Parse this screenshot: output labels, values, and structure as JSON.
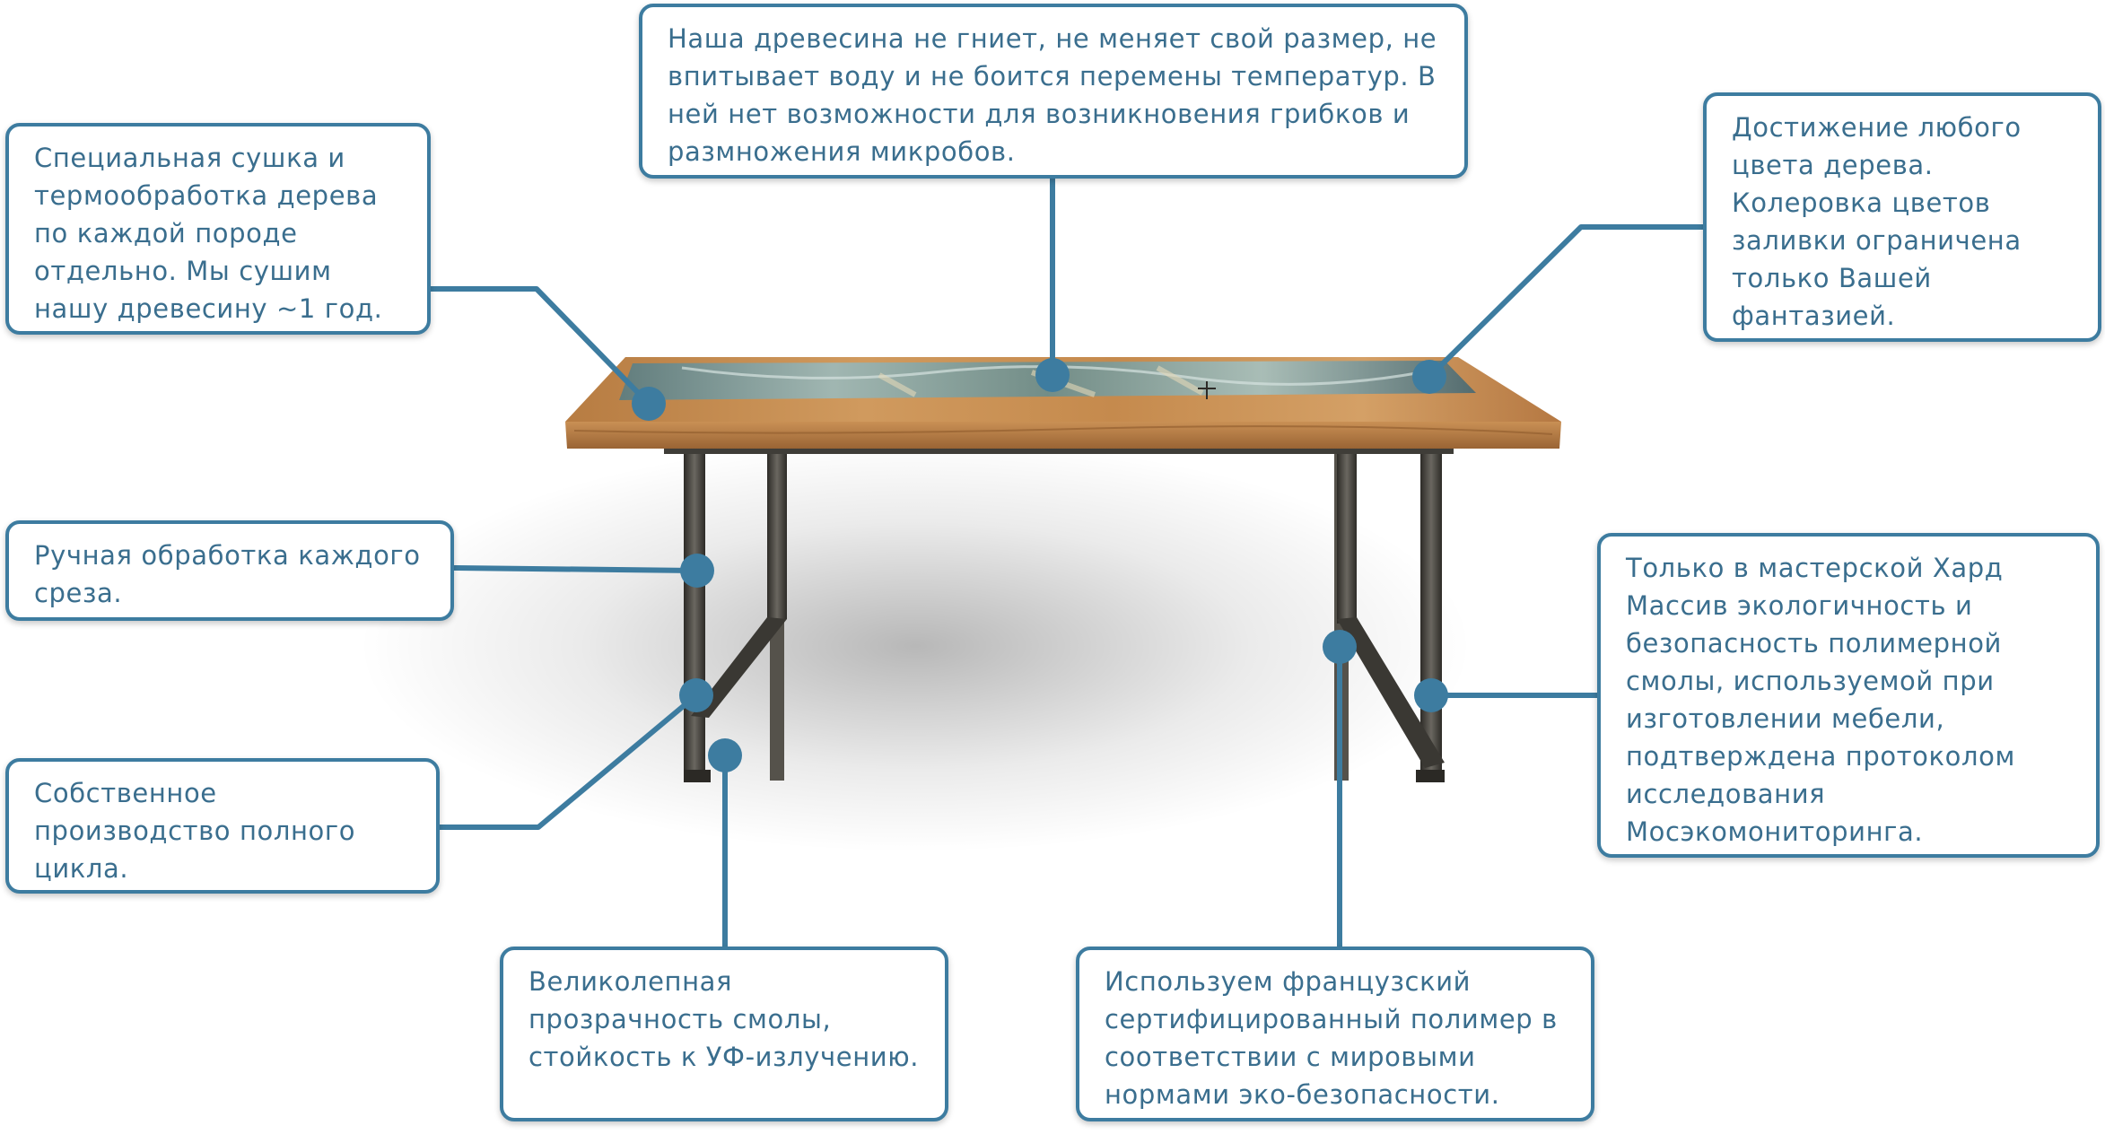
{
  "colors": {
    "accent": "#3d7ca0",
    "text": "#3a6e8e",
    "wood": "#c38a4e",
    "resin": "#7fa3a8",
    "metal": "#3f3d38"
  },
  "callouts": [
    {
      "id": "drying",
      "text": "Специальная сушка и термообработка дерева по каждой породе отдельно. Мы сушим нашу древесину ~1 год."
    },
    {
      "id": "durability",
      "text": "Наша древесина не гниет, не меняет свой размер, не впитывает воду и не боится перемены температур. В ней нет возможности для возникновения грибков и размножения микробов."
    },
    {
      "id": "color",
      "text": "Достижение любого цвета дерева. Колеровка цветов заливки ограничена только Вашей фантазией."
    },
    {
      "id": "handwork",
      "text": "Ручная обработка каждого среза."
    },
    {
      "id": "production",
      "text": "Собственное производство полного цикла."
    },
    {
      "id": "ecology",
      "text": "Только в мастерской Хард Массив экологичность и безопасность полимерной смолы, используемой при изготовлении мебели, подтверждена протоколом исследования Мосэкомониторинга."
    },
    {
      "id": "transparency",
      "text": "Великолепная прозрачность смолы, стойкость к УФ-излучению."
    },
    {
      "id": "polymer",
      "text": "Используем французский сертифицированный полимер в соответствии с мировыми нормами эко-безопасности."
    }
  ]
}
